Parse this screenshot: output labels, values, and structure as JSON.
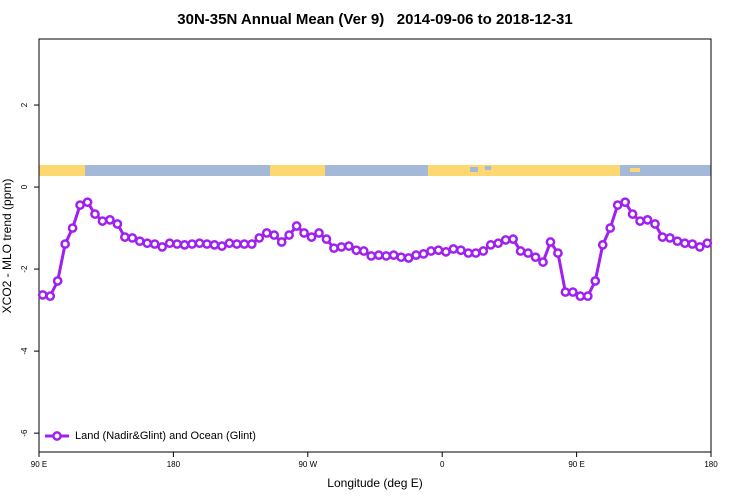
{
  "chart_data": {
    "type": "line",
    "title": "30N-35N Annual Mean (Ver 9)   2014-09-06 to 2018-12-31",
    "x_label": "Longitude (deg E)",
    "y_label": "XCO2 - MLO trend (ppm)",
    "xlim": [
      90,
      540
    ],
    "ylim": [
      -6.46,
      3.61
    ],
    "xticks": [
      {
        "value": 90,
        "label": "90 E"
      },
      {
        "value": 180,
        "label": "180"
      },
      {
        "value": 270,
        "label": "90 W"
      },
      {
        "value": 360,
        "label": "0"
      },
      {
        "value": 450,
        "label": "90 E"
      },
      {
        "value": 540,
        "label": "180"
      }
    ],
    "yticks": [
      -6,
      -4,
      -2,
      0,
      2
    ],
    "legend": "bottom-left",
    "x": [
      92.5,
      97.5,
      102.5,
      107.5,
      112.5,
      117.5,
      122.5,
      127.5,
      132.5,
      137.5,
      142.5,
      147.5,
      152.5,
      157.5,
      162.5,
      167.5,
      172.5,
      177.5,
      182.5,
      187.5,
      192.5,
      197.5,
      202.5,
      207.5,
      212.5,
      217.5,
      222.5,
      227.5,
      232.5,
      237.5,
      242.5,
      247.5,
      252.5,
      257.5,
      262.5,
      267.5,
      272.5,
      277.5,
      282.5,
      287.5,
      292.5,
      297.5,
      302.5,
      307.5,
      312.5,
      317.5,
      322.5,
      327.5,
      332.5,
      337.5,
      342.5,
      347.5,
      352.5,
      357.5,
      362.5,
      367.5,
      372.5,
      377.5,
      382.5,
      387.5,
      392.5,
      397.5,
      402.5,
      407.5,
      412.5,
      417.5,
      422.5,
      427.5,
      432.5,
      437.5,
      442.5,
      447.5,
      452.5,
      457.5,
      462.5,
      467.5,
      472.5,
      477.5,
      482.5,
      487.5,
      492.5,
      497.5,
      502.5,
      507.5,
      512.5,
      517.5,
      522.5,
      527.5,
      532.5,
      537.5
    ],
    "series": [
      {
        "name": "Land (Nadir&Glint) and Ocean (Glint)",
        "color": "#a020f0",
        "values": [
          -2.63,
          -2.66,
          -2.29,
          -1.39,
          -1.0,
          -0.44,
          -0.37,
          -0.66,
          -0.83,
          -0.8,
          -0.9,
          -1.22,
          -1.24,
          -1.32,
          -1.37,
          -1.39,
          -1.46,
          -1.37,
          -1.39,
          -1.41,
          -1.39,
          -1.37,
          -1.39,
          -1.41,
          -1.44,
          -1.37,
          -1.39,
          -1.39,
          -1.39,
          -1.24,
          -1.12,
          -1.17,
          -1.34,
          -1.17,
          -0.95,
          -1.12,
          -1.22,
          -1.12,
          -1.27,
          -1.49,
          -1.46,
          -1.44,
          -1.54,
          -1.56,
          -1.68,
          -1.66,
          -1.68,
          -1.66,
          -1.71,
          -1.73,
          -1.66,
          -1.63,
          -1.56,
          -1.54,
          -1.58,
          -1.51,
          -1.54,
          -1.61,
          -1.61,
          -1.56,
          -1.41,
          -1.37,
          -1.29,
          -1.27,
          -1.56,
          -1.61,
          -1.71,
          -1.83,
          -1.34,
          -1.61,
          -2.56,
          -2.56,
          -2.66,
          -2.66,
          -2.29,
          -1.41,
          -1.0,
          -0.44,
          -0.37,
          -0.66,
          -0.83,
          -0.8,
          -0.9,
          -1.22,
          -1.24,
          -1.32,
          -1.37,
          -1.39,
          -1.46,
          -1.37
        ]
      }
    ]
  }
}
